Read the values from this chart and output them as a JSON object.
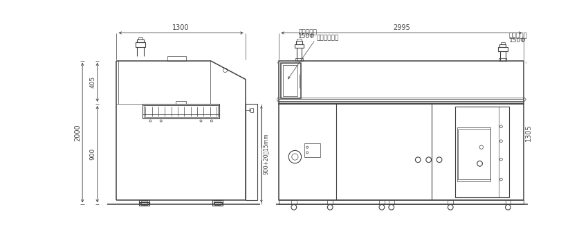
{
  "bg_color": "#ffffff",
  "lc": "#404040",
  "fig_width": 8.5,
  "fig_height": 3.51,
  "dpi": 100,
  "annotations": {
    "dim_1300": "1300",
    "dim_2995": "2995",
    "dim_2000": "2000",
    "dim_405": "405",
    "dim_900": "900",
    "dim_1305": "1305",
    "dim_height_adj": "900+20【15mm",
    "label_haikida1": "排気ダクト",
    "label_150phi1": "150Φ",
    "label_touch": "タッチパネル",
    "label_haikida2": "排気ダクト",
    "label_150phi2": "150Φ"
  }
}
